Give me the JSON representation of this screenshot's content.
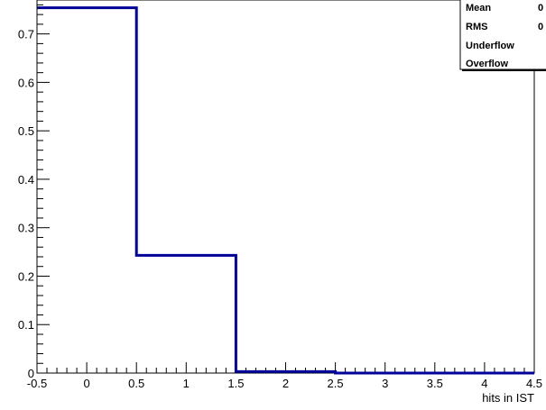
{
  "chart_data": {
    "type": "histogram",
    "title": "",
    "xlabel": "hits in IST",
    "ylabel": "",
    "xlim": [
      -0.5,
      4.5
    ],
    "ylim": [
      0,
      0.77
    ],
    "bin_edges": [
      -0.5,
      0.5,
      1.5,
      2.5,
      3.5,
      4.5
    ],
    "values": [
      0.754,
      0.243,
      0.003,
      0.0,
      0.0
    ],
    "x_ticks": [
      "-0.5",
      "0",
      "0.5",
      "1",
      "1.5",
      "2",
      "2.5",
      "3",
      "3.5",
      "4",
      "4.5"
    ],
    "y_ticks": [
      "0",
      "0.1",
      "0.2",
      "0.3",
      "0.4",
      "0.5",
      "0.6",
      "0.7"
    ],
    "line_color": "#000099",
    "grid": false,
    "stats_box": {
      "placement": "top-right",
      "rows": [
        {
          "label": "Mean",
          "value": "0"
        },
        {
          "label": "RMS",
          "value": "0"
        },
        {
          "label": "Underflow",
          "value": ""
        },
        {
          "label": "Overflow",
          "value": ""
        }
      ]
    }
  }
}
